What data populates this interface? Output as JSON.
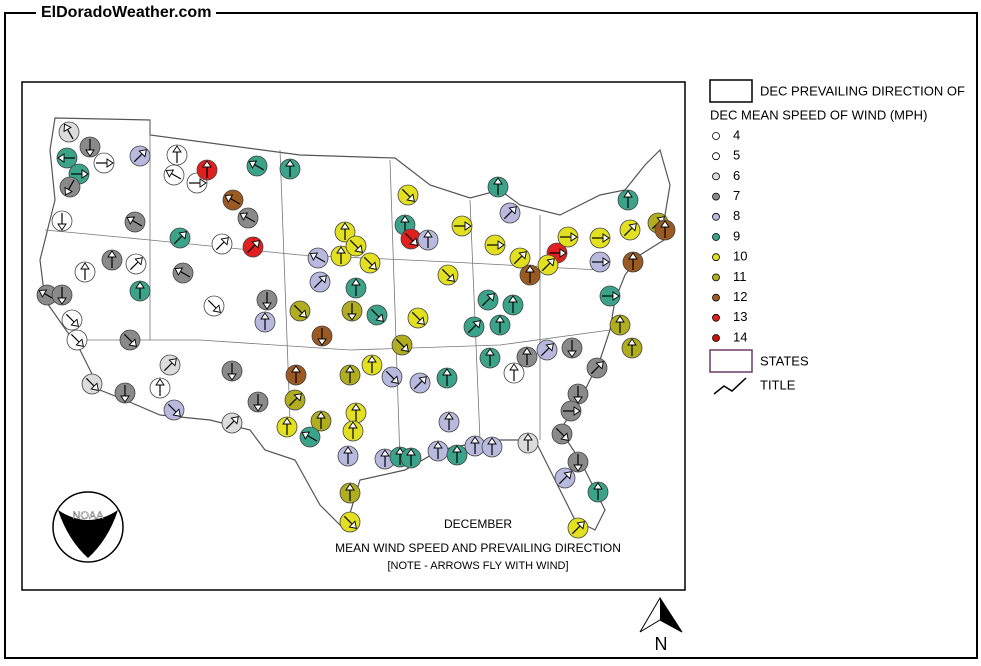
{
  "header": {
    "title": "ElDoradoWeather.com"
  },
  "legend": {
    "direction_label": "DEC PREVAILING DIRECTION OF",
    "speed_title": "DEC MEAN SPEED OF WIND (MPH)",
    "speeds": [
      {
        "speed": 4,
        "color": "#ffffff"
      },
      {
        "speed": 5,
        "color": "#ffffff"
      },
      {
        "speed": 6,
        "color": "#dcdcdc"
      },
      {
        "speed": 7,
        "color": "#8a8a8a"
      },
      {
        "speed": 8,
        "color": "#b9b9df"
      },
      {
        "speed": 9,
        "color": "#3aa38a"
      },
      {
        "speed": 10,
        "color": "#e2e020"
      },
      {
        "speed": 11,
        "color": "#b0ae1e"
      },
      {
        "speed": 12,
        "color": "#9a5a22"
      },
      {
        "speed": 13,
        "color": "#e01f1f"
      },
      {
        "speed": 14,
        "color": "#cc1010"
      }
    ],
    "states_label": "STATES",
    "title_label": "TITLE"
  },
  "map": {
    "month": "DECEMBER",
    "caption": "MEAN WIND SPEED AND PREVAILING DIRECTION",
    "note": "[NOTE - ARROWS FLY WITH WIND]",
    "logo": "NOAA",
    "north": "N",
    "stations": [
      {
        "speed": 6,
        "direction": 330
      },
      {
        "speed": 7,
        "direction": 180
      },
      {
        "speed": 9,
        "direction": 270
      },
      {
        "speed": 9,
        "direction": 90
      },
      {
        "speed": 7,
        "direction": 210
      },
      {
        "speed": 8,
        "direction": 45
      },
      {
        "speed": 5,
        "direction": 90
      },
      {
        "speed": 5,
        "direction": 0
      },
      {
        "speed": 5,
        "direction": 300
      },
      {
        "speed": 5,
        "direction": 90
      },
      {
        "speed": 13,
        "direction": 0
      },
      {
        "speed": 9,
        "direction": 300
      },
      {
        "speed": 9,
        "direction": 0
      },
      {
        "speed": 12,
        "direction": 300
      },
      {
        "speed": 7,
        "direction": 300
      },
      {
        "speed": 7,
        "direction": 300
      },
      {
        "speed": 5,
        "direction": 180
      },
      {
        "speed": 9,
        "direction": 45
      },
      {
        "speed": 7,
        "direction": 0
      },
      {
        "speed": 5,
        "direction": 45
      },
      {
        "speed": 5,
        "direction": 0
      },
      {
        "speed": 7,
        "direction": 300
      },
      {
        "speed": 13,
        "direction": 45
      },
      {
        "speed": 5,
        "direction": 45
      },
      {
        "speed": 9,
        "direction": 0
      },
      {
        "speed": 7,
        "direction": 300
      },
      {
        "speed": 7,
        "direction": 180
      },
      {
        "speed": 5,
        "direction": 135
      },
      {
        "speed": 5,
        "direction": 135
      },
      {
        "speed": 6,
        "direction": 135
      },
      {
        "speed": 7,
        "direction": 180
      },
      {
        "speed": 7,
        "direction": 135
      },
      {
        "speed": 6,
        "direction": 45
      },
      {
        "speed": 5,
        "direction": 0
      },
      {
        "speed": 8,
        "direction": 135
      },
      {
        "speed": 5,
        "direction": 135
      },
      {
        "speed": 7,
        "direction": 180
      },
      {
        "speed": 8,
        "direction": 0
      },
      {
        "speed": 11,
        "direction": 135
      },
      {
        "speed": 7,
        "direction": 180
      },
      {
        "speed": 7,
        "direction": 180
      },
      {
        "speed": 6,
        "direction": 45
      },
      {
        "speed": 12,
        "direction": 0
      },
      {
        "speed": 11,
        "direction": 45
      },
      {
        "speed": 10,
        "direction": 0
      },
      {
        "speed": 11,
        "direction": 0
      },
      {
        "speed": 9,
        "direction": 300
      },
      {
        "speed": 10,
        "direction": 0
      },
      {
        "speed": 10,
        "direction": 0
      },
      {
        "speed": 10,
        "direction": 135
      },
      {
        "speed": 8,
        "direction": 300
      },
      {
        "speed": 10,
        "direction": 135
      },
      {
        "speed": 9,
        "direction": 0
      },
      {
        "speed": 8,
        "direction": 45
      },
      {
        "speed": 11,
        "direction": 180
      },
      {
        "speed": 12,
        "direction": 180
      },
      {
        "speed": 9,
        "direction": 135
      },
      {
        "speed": 10,
        "direction": 135
      },
      {
        "speed": 9,
        "direction": 0
      },
      {
        "speed": 13,
        "direction": 135
      },
      {
        "speed": 8,
        "direction": 0
      },
      {
        "speed": 10,
        "direction": 135
      },
      {
        "speed": 10,
        "direction": 135
      },
      {
        "speed": 11,
        "direction": 135
      },
      {
        "speed": 10,
        "direction": 0
      },
      {
        "speed": 8,
        "direction": 135
      },
      {
        "speed": 11,
        "direction": 0
      },
      {
        "speed": 10,
        "direction": 0
      },
      {
        "speed": 10,
        "direction": 0
      },
      {
        "speed": 8,
        "direction": 0
      },
      {
        "speed": 8,
        "direction": 0
      },
      {
        "speed": 9,
        "direction": 0
      },
      {
        "speed": 9,
        "direction": 0
      },
      {
        "speed": 8,
        "direction": 45
      },
      {
        "speed": 9,
        "direction": 0
      },
      {
        "speed": 8,
        "direction": 0
      },
      {
        "speed": 8,
        "direction": 0
      },
      {
        "speed": 9,
        "direction": 0
      },
      {
        "speed": 8,
        "direction": 0
      },
      {
        "speed": 8,
        "direction": 0
      },
      {
        "speed": 6,
        "direction": 0
      },
      {
        "speed": 9,
        "direction": 0
      },
      {
        "speed": 5,
        "direction": 0
      },
      {
        "speed": 7,
        "direction": 0
      },
      {
        "speed": 8,
        "direction": 45
      },
      {
        "speed": 7,
        "direction": 180
      },
      {
        "speed": 7,
        "direction": 180
      },
      {
        "speed": 7,
        "direction": 45
      },
      {
        "speed": 7,
        "direction": 90
      },
      {
        "speed": 7,
        "direction": 135
      },
      {
        "speed": 7,
        "direction": 180
      },
      {
        "speed": 8,
        "direction": 45
      },
      {
        "speed": 9,
        "direction": 0
      },
      {
        "speed": 10,
        "direction": 45
      },
      {
        "speed": 11,
        "direction": 0
      },
      {
        "speed": 10,
        "direction": 135
      },
      {
        "speed": 10,
        "direction": 90
      },
      {
        "speed": 9,
        "direction": 0
      },
      {
        "speed": 8,
        "direction": 45
      },
      {
        "speed": 10,
        "direction": 90
      },
      {
        "speed": 10,
        "direction": 45
      },
      {
        "speed": 12,
        "direction": 0
      },
      {
        "speed": 13,
        "direction": 90
      },
      {
        "speed": 10,
        "direction": 45
      },
      {
        "speed": 10,
        "direction": 90
      },
      {
        "speed": 10,
        "direction": 90
      },
      {
        "speed": 9,
        "direction": 0
      },
      {
        "speed": 10,
        "direction": 45
      },
      {
        "speed": 11,
        "direction": 45
      },
      {
        "speed": 12,
        "direction": 0
      },
      {
        "speed": 12,
        "direction": 0
      },
      {
        "speed": 9,
        "direction": 90
      },
      {
        "speed": 11,
        "direction": 0
      },
      {
        "speed": 11,
        "direction": 0
      },
      {
        "speed": 8,
        "direction": 90
      },
      {
        "speed": 9,
        "direction": 45
      },
      {
        "speed": 9,
        "direction": 0
      },
      {
        "speed": 9,
        "direction": 0
      },
      {
        "speed": 9,
        "direction": 45
      }
    ]
  }
}
